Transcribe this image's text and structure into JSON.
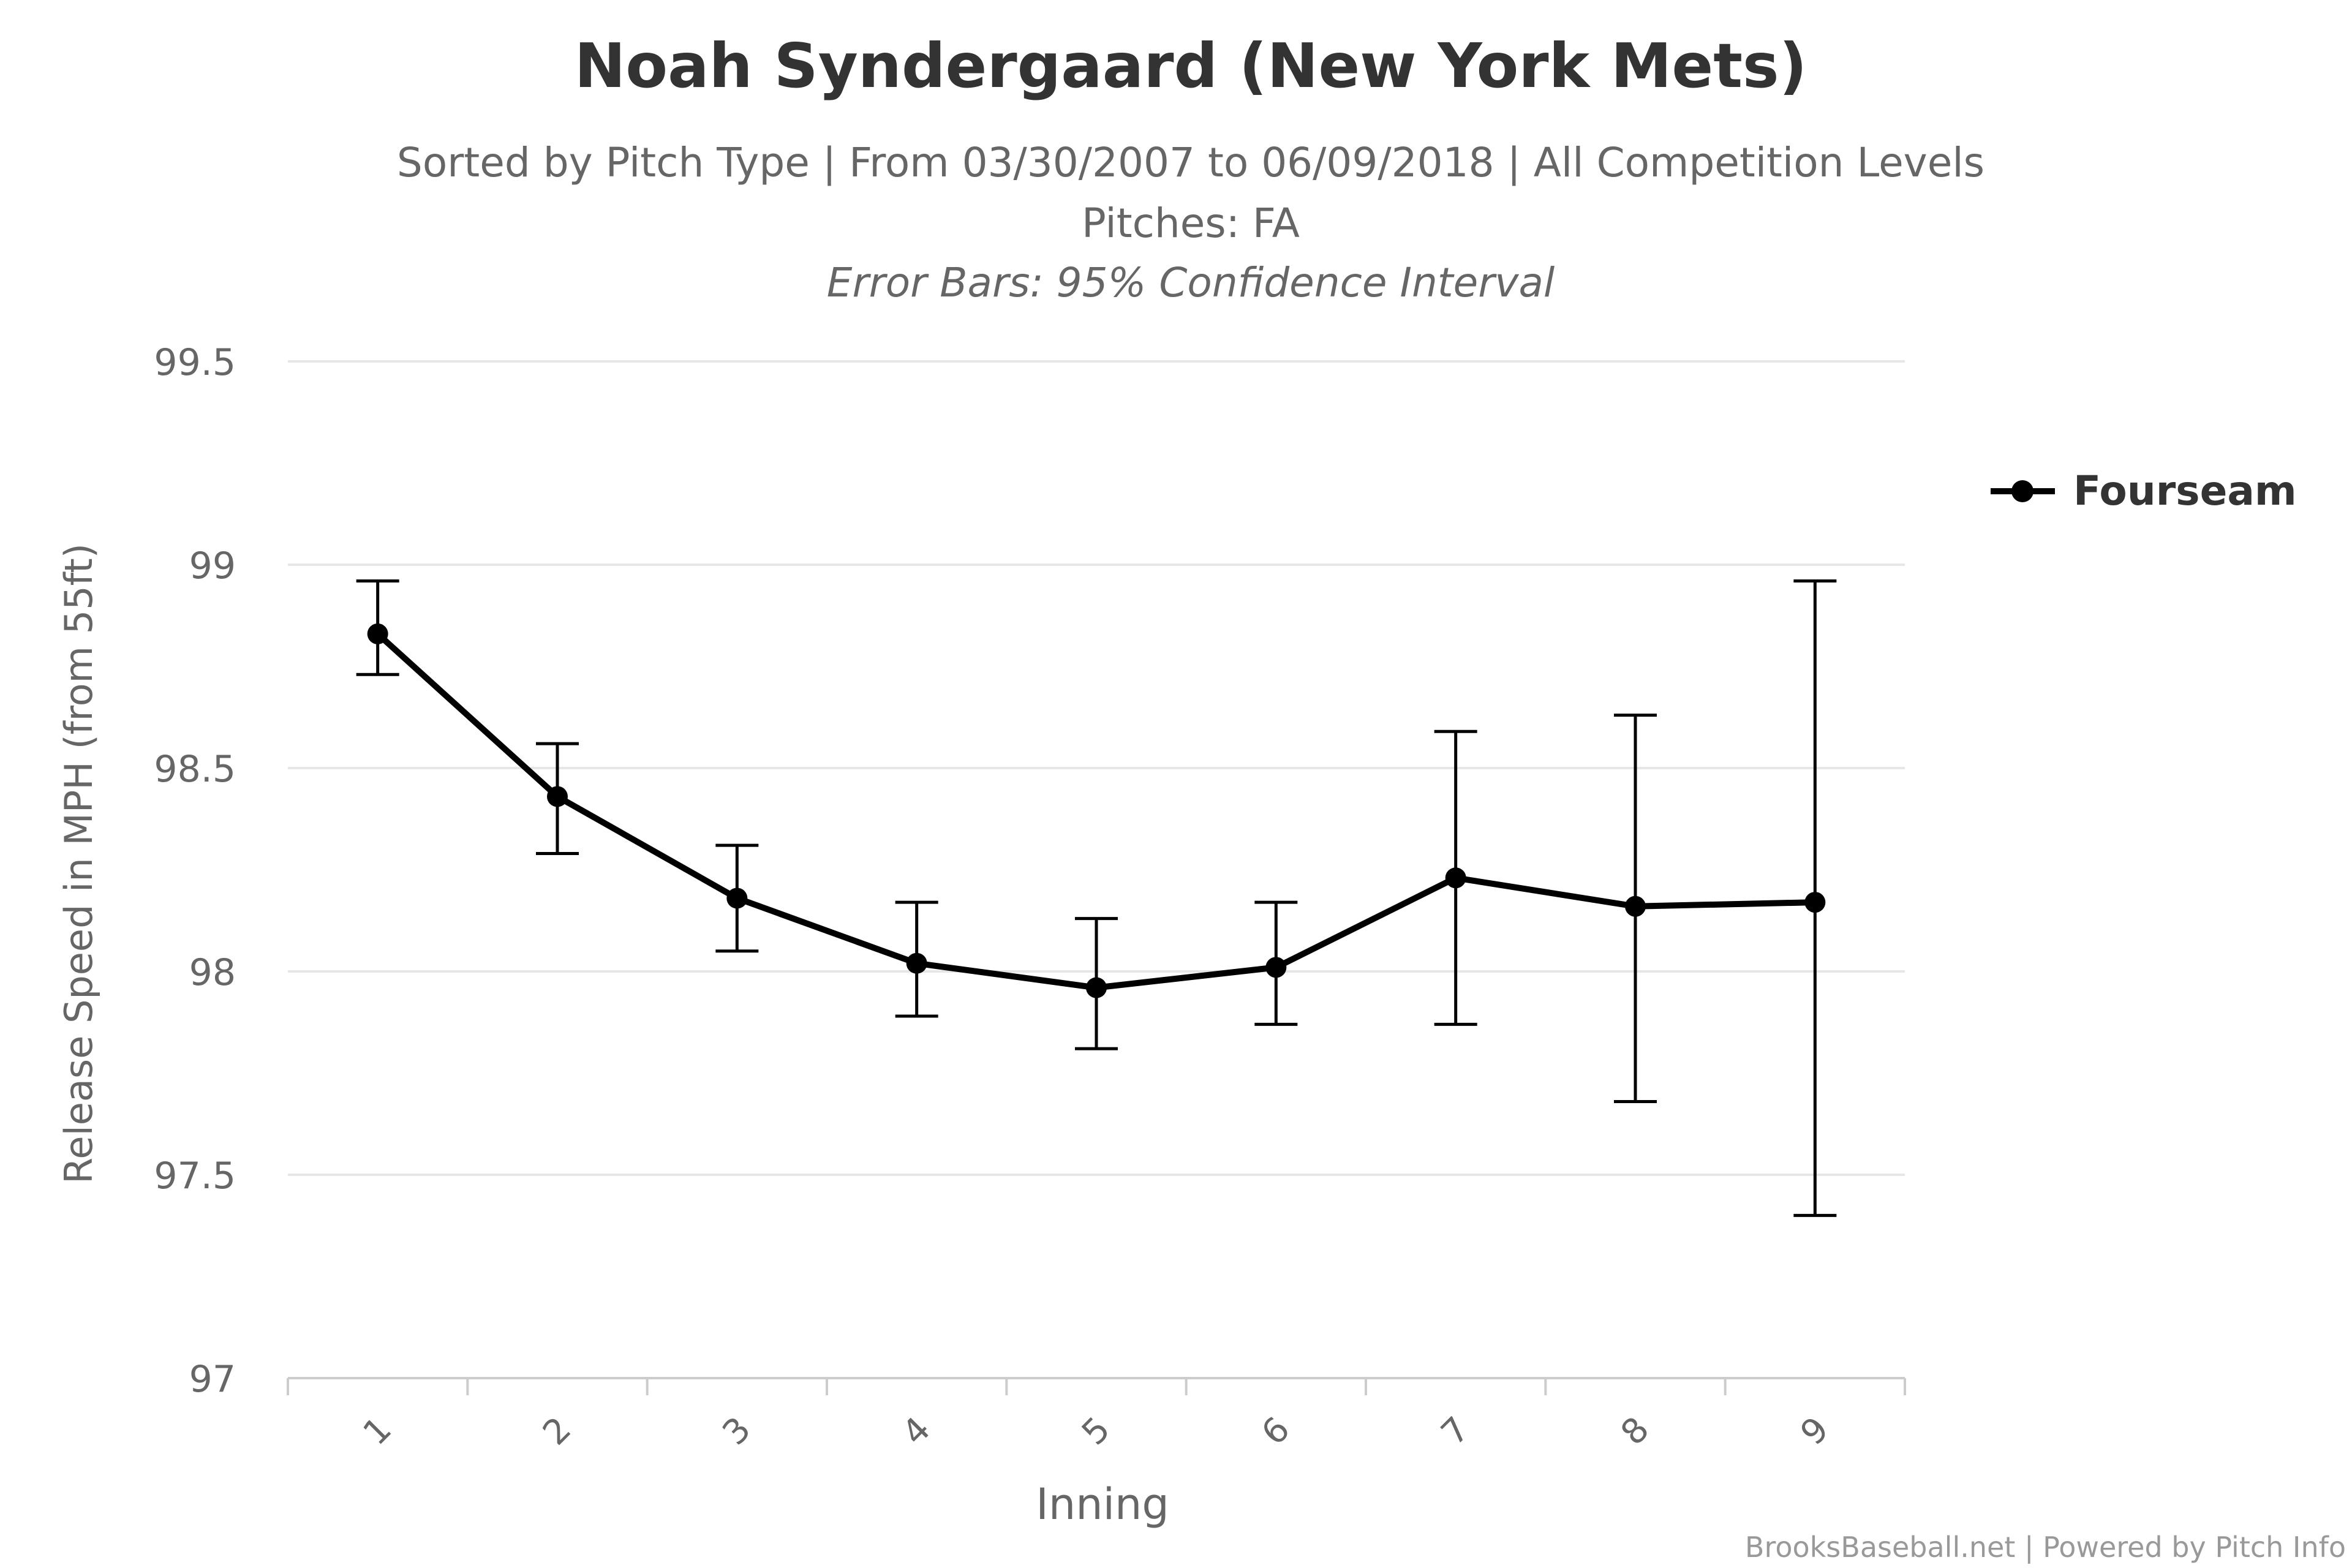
{
  "chart_data": {
    "type": "line",
    "title": "Noah Syndergaard (New York Mets)",
    "subtitle": "Sorted by Pitch Type | From 03/30/2007 to 06/09/2018 | All Competition Levels",
    "subtitle2": "Pitches: FA",
    "subtitle3": "Error Bars: 95% Confidence Interval",
    "xlabel": "Inning",
    "ylabel": "Release Speed in MPH (from 55ft)",
    "categories": [
      "1",
      "2",
      "3",
      "4",
      "5",
      "6",
      "7",
      "8",
      "9"
    ],
    "ylim": [
      97,
      99.5
    ],
    "yticks": [
      "97",
      "97.5",
      "98",
      "98.5",
      "99",
      "99.5"
    ],
    "grid": true,
    "legend_position": "right",
    "series": [
      {
        "name": "Fourseam",
        "color": "#000000",
        "values": [
          98.83,
          98.43,
          98.18,
          98.02,
          97.96,
          98.01,
          98.23,
          98.16,
          98.17
        ],
        "error_low": [
          98.73,
          98.29,
          98.05,
          97.89,
          97.81,
          97.87,
          97.87,
          97.68,
          97.4
        ],
        "error_high": [
          98.96,
          98.56,
          98.31,
          98.17,
          98.13,
          98.17,
          98.59,
          98.63,
          98.96
        ]
      }
    ]
  },
  "credits": "BrooksBaseball.net | Powered by Pitch Info"
}
